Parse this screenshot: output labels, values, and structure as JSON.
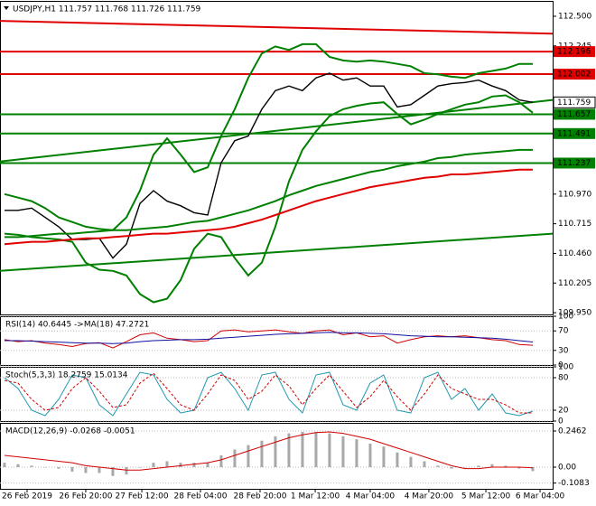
{
  "chart_data": [
    {
      "type": "line",
      "title": "USDJPY,H1  111.757 111.768 111.726 111.759",
      "xlim": [
        -0.33,
        40.47
      ],
      "ylim": [
        109.935,
        112.632
      ],
      "yticks": [
        {
          "value": 112.5,
          "label": "112.500"
        },
        112.245,
        {
          "value": 110.97,
          "label": "110.970"
        },
        110.715,
        {
          "value": 110.46,
          "label": "110.460"
        },
        110.205,
        {
          "value": 109.95,
          "label": "109.950"
        }
      ],
      "x": [
        0,
        1,
        2,
        3,
        4,
        5,
        6,
        7,
        8,
        9,
        10,
        11,
        12,
        13,
        14,
        15,
        16,
        17,
        18,
        19,
        20,
        21,
        22,
        23,
        24,
        25,
        26,
        27,
        28,
        29,
        30,
        31,
        32,
        33,
        34,
        35,
        36,
        37,
        38,
        39
      ],
      "series": [
        {
          "color": "#000000",
          "values": [
            110.83,
            110.83,
            110.85,
            110.77,
            110.69,
            110.58,
            110.58,
            110.59,
            110.42,
            110.54,
            110.89,
            111.0,
            110.91,
            110.87,
            110.81,
            110.79,
            111.24,
            111.43,
            111.47,
            111.7,
            111.86,
            111.9,
            111.86,
            111.97,
            112.01,
            111.95,
            111.97,
            111.9,
            111.9,
            111.72,
            111.74,
            111.82,
            111.9,
            111.92,
            111.93,
            111.95,
            111.9,
            111.86,
            111.78,
            111.759
          ]
        },
        {
          "color": "#008000",
          "values": [
            110.97,
            110.94,
            110.91,
            110.85,
            110.77,
            110.73,
            110.69,
            110.67,
            110.66,
            110.77,
            111.0,
            111.31,
            111.45,
            111.31,
            111.16,
            111.2,
            111.47,
            111.7,
            111.97,
            112.18,
            112.24,
            112.21,
            112.26,
            112.26,
            112.15,
            112.12,
            112.11,
            112.12,
            112.11,
            112.09,
            112.07,
            112.01,
            112.0,
            111.98,
            111.97,
            112.01,
            112.03,
            112.05,
            112.09,
            112.09
          ]
        },
        {
          "color": "#008000",
          "values": [
            110.63,
            110.62,
            110.6,
            110.59,
            110.58,
            110.56,
            110.38,
            110.32,
            110.31,
            110.27,
            110.11,
            110.04,
            110.07,
            110.23,
            110.5,
            110.63,
            110.6,
            110.42,
            110.27,
            110.38,
            110.69,
            111.08,
            111.35,
            111.51,
            111.64,
            111.7,
            111.73,
            111.75,
            111.76,
            111.66,
            111.57,
            111.61,
            111.66,
            111.7,
            111.74,
            111.76,
            111.81,
            111.82,
            111.76,
            111.67
          ]
        },
        {
          "color": "#e00000",
          "values": [
            110.54,
            110.55,
            110.56,
            110.56,
            110.57,
            110.58,
            110.59,
            110.59,
            110.6,
            110.61,
            110.62,
            110.63,
            110.63,
            110.64,
            110.65,
            110.66,
            110.67,
            110.69,
            110.72,
            110.75,
            110.79,
            110.83,
            110.87,
            110.91,
            110.94,
            110.97,
            111.0,
            111.03,
            111.05,
            111.07,
            111.09,
            111.11,
            111.12,
            111.14,
            111.14,
            111.15,
            111.16,
            111.17,
            111.18,
            111.18
          ]
        },
        {
          "color": "#008000",
          "values": [
            110.6,
            110.6,
            110.61,
            110.62,
            110.63,
            110.63,
            110.64,
            110.65,
            110.66,
            110.66,
            110.67,
            110.68,
            110.69,
            110.71,
            110.73,
            110.74,
            110.77,
            110.8,
            110.83,
            110.87,
            110.91,
            110.96,
            111.0,
            111.04,
            111.07,
            111.1,
            111.13,
            111.16,
            111.18,
            111.21,
            111.23,
            111.25,
            111.28,
            111.29,
            111.31,
            111.32,
            111.33,
            111.34,
            111.35,
            111.35
          ]
        }
      ],
      "trendlines": [
        {
          "color": "#e00000",
          "x": [
            -0.33,
            40.47
          ],
          "values": [
            112.46,
            112.35
          ]
        },
        {
          "color": "#008000",
          "x": [
            -0.33,
            40.47
          ],
          "values": [
            111.25,
            111.78
          ]
        },
        {
          "color": "#008000",
          "x": [
            -0.33,
            40.47
          ],
          "values": [
            110.31,
            110.63
          ]
        }
      ],
      "levels": [
        {
          "value": 112.196,
          "color": "#e00000"
        },
        {
          "value": 112.002,
          "color": "#e00000"
        },
        {
          "value": 111.657,
          "color": "#008000"
        },
        {
          "value": 111.491,
          "color": "#008000"
        },
        {
          "value": 111.237,
          "color": "#008000"
        }
      ]
    },
    {
      "type": "line",
      "title": "RSI(14) 40.6445   ->MA(18) 47.2721",
      "xlim": [
        -0.33,
        40.47
      ],
      "ylim": [
        0,
        100
      ],
      "yticks": [
        100,
        70,
        30,
        0
      ],
      "x": [
        0,
        1,
        2,
        3,
        4,
        5,
        6,
        7,
        8,
        9,
        10,
        11,
        12,
        13,
        14,
        15,
        16,
        17,
        18,
        19,
        20,
        21,
        22,
        23,
        24,
        25,
        26,
        27,
        28,
        29,
        30,
        31,
        32,
        33,
        34,
        35,
        36,
        37,
        38,
        39
      ],
      "series": [
        {
          "color": "#d00000",
          "values": [
            52,
            48,
            50,
            45,
            42,
            38,
            44,
            46,
            35,
            48,
            62,
            66,
            55,
            52,
            48,
            50,
            70,
            72,
            68,
            70,
            72,
            68,
            65,
            70,
            72,
            62,
            66,
            58,
            60,
            45,
            52,
            58,
            60,
            58,
            60,
            56,
            52,
            50,
            42,
            40.6445
          ]
        },
        {
          "color": "#1010a0",
          "values": [
            50,
            50,
            49,
            48,
            47,
            46,
            45,
            45,
            44,
            45,
            48,
            50,
            51,
            52,
            52,
            53,
            55,
            57,
            59,
            61,
            63,
            64,
            65,
            66,
            67,
            66,
            66,
            65,
            64,
            62,
            60,
            59,
            58,
            58,
            57,
            56,
            55,
            53,
            50,
            47.2721
          ]
        }
      ]
    },
    {
      "type": "line",
      "title": "Stoch(5,3,3) 18.2759 15.0134",
      "xlim": [
        -0.33,
        40.47
      ],
      "ylim": [
        0,
        100
      ],
      "yticks": [
        100,
        80,
        20,
        0
      ],
      "x": [
        0,
        1,
        2,
        3,
        4,
        5,
        6,
        7,
        8,
        9,
        10,
        11,
        12,
        13,
        14,
        15,
        16,
        17,
        18,
        19,
        20,
        21,
        22,
        23,
        24,
        25,
        26,
        27,
        28,
        29,
        30,
        31,
        32,
        33,
        34,
        35,
        36,
        37,
        38,
        39
      ],
      "series": [
        {
          "color": "#2098b0",
          "values": [
            80,
            60,
            20,
            10,
            40,
            85,
            80,
            30,
            10,
            50,
            90,
            85,
            40,
            15,
            20,
            80,
            90,
            60,
            20,
            85,
            90,
            40,
            15,
            85,
            90,
            30,
            20,
            70,
            85,
            20,
            15,
            80,
            90,
            40,
            60,
            20,
            50,
            15,
            10,
            18.2759
          ]
        },
        {
          "color": "#d00000",
          "dashed": true,
          "values": [
            75,
            70,
            40,
            20,
            25,
            60,
            80,
            55,
            25,
            30,
            70,
            88,
            60,
            30,
            20,
            50,
            85,
            75,
            40,
            55,
            85,
            65,
            30,
            60,
            85,
            55,
            25,
            45,
            75,
            45,
            20,
            50,
            85,
            60,
            50,
            40,
            40,
            30,
            15,
            15.0134
          ]
        }
      ]
    },
    {
      "type": "line",
      "title": "MACD(12,26,9) -0.0268 -0.0051",
      "xlim": [
        -0.33,
        40.47
      ],
      "ylim": [
        -0.1477,
        0.3015
      ],
      "yticks": [
        0.2462,
        {
          "value": 0,
          "label": "0.00"
        },
        -0.1083
      ],
      "xticks": [
        {
          "value": 1.67,
          "label": "26 Feb 2019"
        },
        {
          "value": 6.0,
          "label": "26 Feb 20:00"
        },
        {
          "value": 10.14,
          "label": "27 Feb 12:00"
        },
        {
          "value": 14.47,
          "label": "28 Feb 04:00"
        },
        {
          "value": 18.87,
          "label": "28 Feb 20:00"
        },
        {
          "value": 22.94,
          "label": "1 Mar 12:00"
        },
        {
          "value": 27.0,
          "label": "4 Mar 04:00"
        },
        {
          "value": 31.33,
          "label": "4 Mar 20:00"
        },
        {
          "value": 35.54,
          "label": "5 Mar 12:00"
        },
        {
          "value": 39.54,
          "label": "6 Mar 04:00"
        }
      ],
      "x": [
        0,
        1,
        2,
        3,
        4,
        5,
        6,
        7,
        8,
        9,
        10,
        11,
        12,
        13,
        14,
        15,
        16,
        17,
        18,
        19,
        20,
        21,
        22,
        23,
        24,
        25,
        26,
        27,
        28,
        29,
        30,
        31,
        32,
        33,
        34,
        35,
        36,
        37,
        38,
        39
      ],
      "series": [
        {
          "color": "#a8a8a8",
          "histogram": true,
          "values": [
            0.03,
            0.02,
            0.01,
            0.0,
            -0.01,
            -0.03,
            -0.04,
            -0.04,
            -0.06,
            -0.05,
            0.0,
            0.03,
            0.04,
            0.03,
            0.03,
            0.03,
            0.08,
            0.12,
            0.15,
            0.18,
            0.21,
            0.23,
            0.24,
            0.24,
            0.23,
            0.21,
            0.19,
            0.16,
            0.14,
            0.1,
            0.07,
            0.04,
            0.01,
            -0.01,
            0.0,
            0.01,
            0.02,
            0.01,
            -0.01,
            -0.0268
          ]
        },
        {
          "color": "#d00000",
          "values": [
            0.08,
            0.07,
            0.06,
            0.05,
            0.04,
            0.03,
            0.01,
            0.0,
            -0.01,
            -0.02,
            -0.02,
            -0.01,
            0.0,
            0.01,
            0.02,
            0.03,
            0.05,
            0.08,
            0.11,
            0.14,
            0.17,
            0.2,
            0.22,
            0.235,
            0.24,
            0.23,
            0.21,
            0.19,
            0.16,
            0.13,
            0.1,
            0.07,
            0.04,
            0.01,
            -0.01,
            -0.01,
            0.0,
            0.0,
            0.0,
            -0.0051
          ]
        }
      ]
    }
  ]
}
